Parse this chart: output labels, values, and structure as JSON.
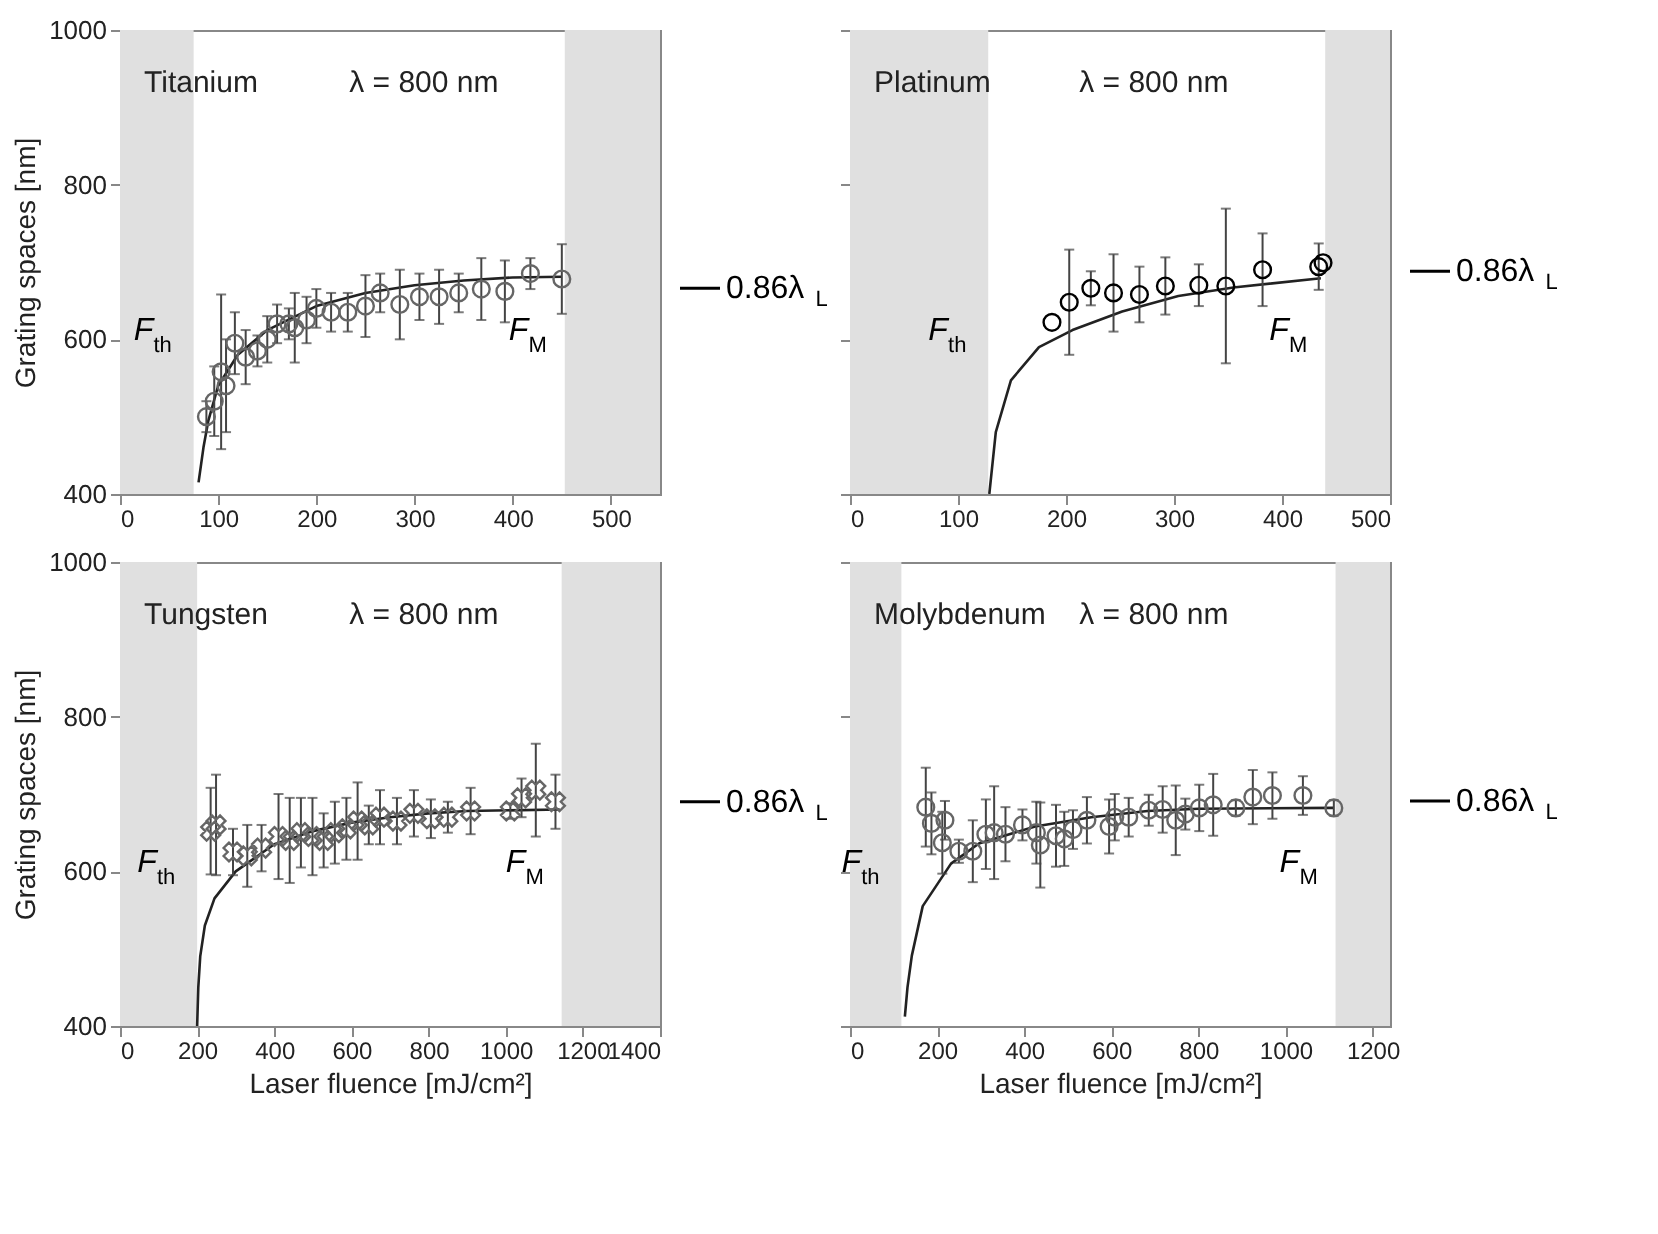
{
  "chart_data": [
    {
      "type": "scatter",
      "xlim": [
        0,
        550
      ],
      "ylim": [
        400,
        1000
      ],
      "xticks": [
        0,
        100,
        200,
        300,
        400,
        500
      ],
      "yticks": [
        400,
        600,
        800,
        1000
      ],
      "ylabel": "Grating spaces [nm]",
      "grid": false,
      "bands": [
        {
          "axis": "x",
          "from": 0,
          "to": 75,
          "color": "#e0e0e0"
        },
        {
          "axis": "x",
          "from": 453,
          "to": 550,
          "color": "#e0e0e0"
        }
      ],
      "annotations": [
        "Titanium",
        "λ = 800 nm",
        "F$_{th}$",
        "F$_{M}$",
        {
          "text": "0.86λ$_{L}$",
          "x": 550,
          "y": 666
        }
      ],
      "series": [
        {
          "type": "line",
          "color": "#222222",
          "x": [
            80,
            85,
            90,
            100,
            120,
            150,
            200,
            250,
            300,
            350,
            400,
            450
          ],
          "values": [
            415,
            460,
            495,
            540,
            580,
            612,
            643,
            660,
            670,
            676,
            680,
            681
          ]
        },
        {
          "marker": "circle",
          "color": "#666666",
          "x": [
            88,
            96,
            103,
            108,
            117,
            128,
            140,
            150,
            160,
            172,
            178,
            190,
            200,
            215,
            232,
            250,
            265,
            285,
            305,
            325,
            345,
            368,
            392,
            418,
            450
          ],
          "values": [
            500,
            520,
            558,
            540,
            595,
            577,
            585,
            600,
            620,
            620,
            615,
            625,
            640,
            635,
            635,
            643,
            660,
            645,
            655,
            655,
            660,
            665,
            662,
            685,
            678
          ],
          "errors": [
            20,
            45,
            100,
            60,
            40,
            35,
            20,
            30,
            25,
            20,
            45,
            30,
            25,
            25,
            25,
            40,
            25,
            45,
            30,
            35,
            25,
            40,
            40,
            20,
            45
          ]
        }
      ]
    },
    {
      "type": "scatter",
      "xlim": [
        0,
        500
      ],
      "ylim": [
        400,
        1000
      ],
      "xticks": [
        0,
        100,
        200,
        300,
        400,
        500
      ],
      "yticks": [
        400,
        600,
        800,
        1000
      ],
      "tick_labels": "x",
      "grid": false,
      "bands": [
        {
          "axis": "x",
          "from": 0,
          "to": 128,
          "color": "#e0e0e0"
        },
        {
          "axis": "x",
          "from": 440,
          "to": 500,
          "color": "#e0e0e0"
        }
      ],
      "annotations": [
        "Platinum",
        "λ = 800 nm",
        "F$_{th}$",
        "F$_{M}$",
        {
          "text": "0.86λ$_{L}$",
          "x": 500,
          "y": 688
        }
      ],
      "series": [
        {
          "type": "line",
          "color": "#222222",
          "x": [
            129,
            135,
            149,
            175,
            206,
            252,
            304,
            355,
            436
          ],
          "values": [
            400,
            480,
            547,
            590,
            612,
            636,
            656,
            667,
            679
          ]
        },
        {
          "marker": "circle",
          "color": "#000000",
          "x": [
            187,
            203,
            223,
            244,
            268,
            292,
            323,
            348,
            382,
            434,
            438
          ],
          "values": [
            622,
            648,
            666,
            660,
            658,
            669,
            670,
            669,
            690,
            694,
            699
          ],
          "errors": [
            null,
            68,
            22,
            50,
            36,
            37,
            27,
            100,
            47,
            30,
            null
          ]
        }
      ]
    },
    {
      "type": "scatter",
      "xlim": [
        0,
        1400
      ],
      "ylim": [
        400,
        1000
      ],
      "xticks": [
        0,
        200,
        400,
        600,
        800,
        1000,
        1200,
        1400
      ],
      "yticks": [
        400,
        600,
        800,
        1000
      ],
      "xlabel": "Laser fluence [mJ/cm²]",
      "ylabel": "Grating spaces [nm]",
      "grid": false,
      "bands": [
        {
          "axis": "x",
          "from": 0,
          "to": 200,
          "color": "#e0e0e0"
        },
        {
          "axis": "x",
          "from": 1145,
          "to": 1400,
          "color": "#e0e0e0"
        }
      ],
      "annotations": [
        "Tungsten",
        "λ = 800 nm",
        "F$_{th}$",
        "F$_{M}$",
        {
          "text": "0.86λ$_{L}$",
          "x": 1400,
          "y": 690
        }
      ],
      "series": [
        {
          "type": "line",
          "color": "#222222",
          "x": [
            200,
            203,
            208,
            220,
            245,
            300,
            400,
            500,
            600,
            700,
            800,
            900,
            1140
          ],
          "values": [
            400,
            450,
            490,
            530,
            565,
            600,
            635,
            652,
            663,
            670,
            675,
            678,
            680
          ]
        },
        {
          "marker": "cross",
          "color": "#666666",
          "x": [
            235,
            249,
            293,
            330,
            367,
            411,
            440,
            469,
            499,
            528,
            557,
            587,
            616,
            645,
            674,
            718,
            762,
            806,
            850,
            909,
            1012,
            1041,
            1078,
            1129
          ],
          "values": [
            652,
            660,
            625,
            620,
            630,
            645,
            640,
            650,
            645,
            640,
            650,
            655,
            665,
            660,
            670,
            665,
            675,
            668,
            670,
            678,
            678,
            695,
            705,
            690
          ],
          "errors": [
            56,
            65,
            30,
            40,
            30,
            55,
            55,
            45,
            50,
            35,
            40,
            40,
            50,
            25,
            35,
            30,
            30,
            25,
            20,
            30,
            10,
            25,
            60,
            35
          ]
        }
      ]
    },
    {
      "type": "scatter",
      "xlim": [
        0,
        1240
      ],
      "ylim": [
        400,
        1000
      ],
      "xticks": [
        0,
        200,
        400,
        600,
        800,
        1000,
        1200
      ],
      "yticks": [
        400,
        600,
        800,
        1000
      ],
      "xlabel": "Laser fluence [mJ/cm²]",
      "tick_labels": "x",
      "grid": false,
      "bands": [
        {
          "axis": "x",
          "from": 0,
          "to": 118,
          "color": "#e0e0e0"
        },
        {
          "axis": "x",
          "from": 1115,
          "to": 1240,
          "color": "#e0e0e0"
        }
      ],
      "annotations": [
        "Molybdenum",
        "λ = 800 nm",
        "F$_{th}$",
        "F$_{M}$",
        {
          "text": "0.86λ$_{L}$",
          "x": 1240,
          "y": 691
        }
      ],
      "series": [
        {
          "type": "line",
          "color": "#222222",
          "x": [
            126,
            132,
            142,
            167,
            232,
            296,
            425,
            554,
            683,
            800,
            1111
          ],
          "values": [
            412,
            450,
            491,
            555,
            610,
            636,
            658,
            670,
            678,
            681,
            682
          ]
        },
        {
          "marker": "circle",
          "color": "#666666",
          "x": [
            174,
            187,
            212,
            218,
            250,
            282,
            312,
            331,
            357,
            396,
            428,
            437,
            473,
            492,
            512,
            544,
            595,
            608,
            640,
            686,
            718,
            748,
            770,
            802,
            834,
            886,
            925,
            970,
            1040,
            1111
          ],
          "values": [
            683,
            662,
            637,
            666,
            626,
            626,
            648,
            650,
            648,
            660,
            650,
            634,
            646,
            642,
            654,
            666,
            658,
            670,
            670,
            679,
            680,
            666,
            674,
            682,
            686,
            682,
            696,
            698,
            698,
            682
          ],
          "errors": [
            51,
            40,
            40,
            25,
            15,
            40,
            45,
            60,
            35,
            20,
            40,
            55,
            40,
            35,
            25,
            30,
            35,
            30,
            25,
            20,
            30,
            45,
            20,
            30,
            40,
            10,
            35,
            30,
            25,
            10
          ]
        }
      ]
    }
  ]
}
